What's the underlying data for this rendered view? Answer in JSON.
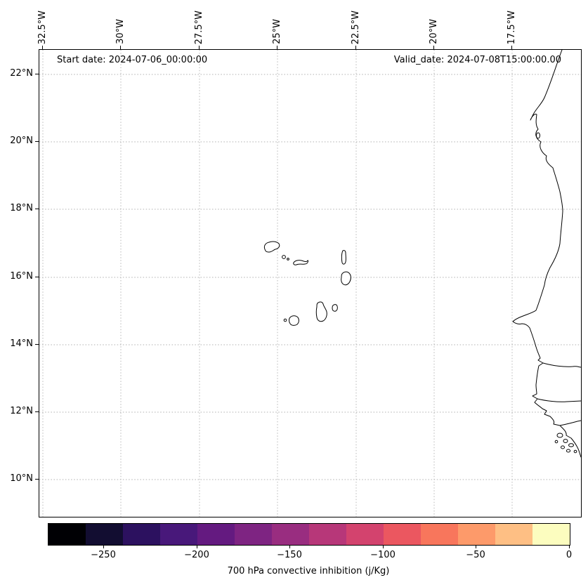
{
  "figure": {
    "annotations": {
      "start_date": "Start date: 2024-07-06_00:00:00",
      "valid_date": "Valid_date: 2024-07-08T15:00:00.00"
    },
    "axes": {
      "top_ticks": [
        "32.5°W",
        "30°W",
        "27.5°W",
        "25°W",
        "22.5°W",
        "20°W",
        "17.5°W"
      ],
      "left_ticks": [
        "22°N",
        "20°N",
        "18°N",
        "16°N",
        "14°N",
        "12°N",
        "10°N"
      ]
    },
    "colorbar": {
      "label": "700 hPa convective inhibition (j/Kg)",
      "ticks": [
        "−250",
        "−200",
        "−150",
        "−100",
        "−50",
        "0"
      ],
      "colors": [
        "#000004",
        "#120d31",
        "#2c115f",
        "#48187a",
        "#641a80",
        "#7e2482",
        "#992d80",
        "#b73779",
        "#d3436e",
        "#eb5760",
        "#f8765c",
        "#fd9a6a",
        "#febf84",
        "#fcfdbf"
      ]
    },
    "map": {
      "region": "Cape Verde islands and West African coast",
      "grid_style": "dotted"
    }
  }
}
